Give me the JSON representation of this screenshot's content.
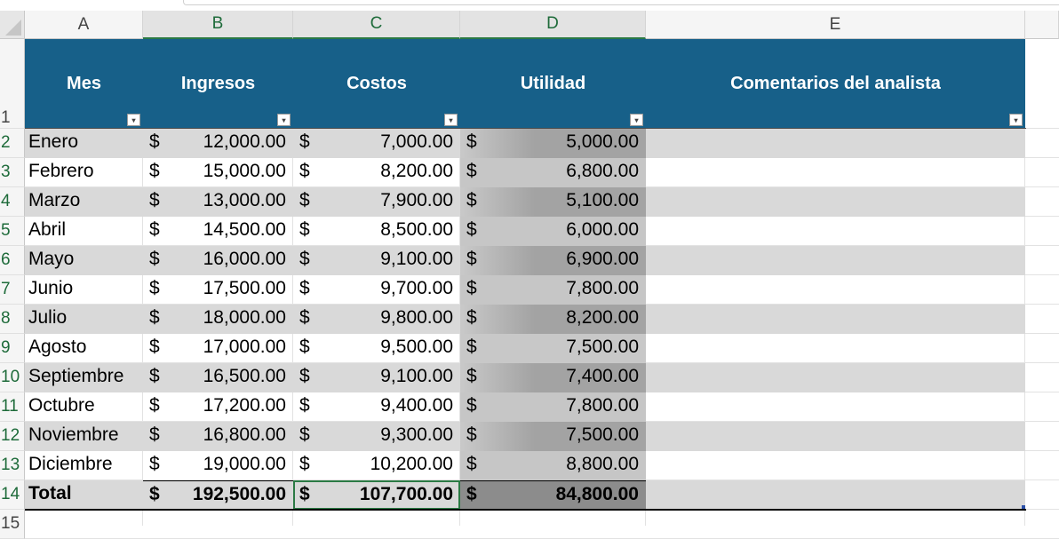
{
  "columns": [
    "A",
    "B",
    "C",
    "D",
    "E"
  ],
  "rows": [
    "1",
    "2",
    "3",
    "4",
    "5",
    "6",
    "7",
    "8",
    "9",
    "10",
    "11",
    "12",
    "13",
    "14",
    "15"
  ],
  "headers": [
    "Mes",
    "Ingresos",
    "Costos",
    "Utilidad",
    "Comentarios del analista"
  ],
  "currency": "$",
  "data": [
    {
      "mes": "Enero",
      "ingresos": "12,000.00",
      "costos": "7,000.00",
      "utilidad": "5,000.00"
    },
    {
      "mes": "Febrero",
      "ingresos": "15,000.00",
      "costos": "8,200.00",
      "utilidad": "6,800.00"
    },
    {
      "mes": "Marzo",
      "ingresos": "13,000.00",
      "costos": "7,900.00",
      "utilidad": "5,100.00"
    },
    {
      "mes": "Abril",
      "ingresos": "14,500.00",
      "costos": "8,500.00",
      "utilidad": "6,000.00"
    },
    {
      "mes": "Mayo",
      "ingresos": "16,000.00",
      "costos": "9,100.00",
      "utilidad": "6,900.00"
    },
    {
      "mes": "Junio",
      "ingresos": "17,500.00",
      "costos": "9,700.00",
      "utilidad": "7,800.00"
    },
    {
      "mes": "Julio",
      "ingresos": "18,000.00",
      "costos": "9,800.00",
      "utilidad": "8,200.00"
    },
    {
      "mes": "Agosto",
      "ingresos": "17,000.00",
      "costos": "9,500.00",
      "utilidad": "7,500.00"
    },
    {
      "mes": "Septiembre",
      "ingresos": "16,500.00",
      "costos": "9,100.00",
      "utilidad": "7,400.00"
    },
    {
      "mes": "Octubre",
      "ingresos": "17,200.00",
      "costos": "9,400.00",
      "utilidad": "7,800.00"
    },
    {
      "mes": "Noviembre",
      "ingresos": "16,800.00",
      "costos": "9,300.00",
      "utilidad": "7,500.00"
    },
    {
      "mes": "Diciembre",
      "ingresos": "19,000.00",
      "costos": "10,200.00",
      "utilidad": "8,800.00"
    }
  ],
  "total": {
    "mes": "Total",
    "ingresos": "192,500.00",
    "costos": "107,700.00",
    "utilidad": "84,800.00"
  },
  "colors": {
    "header_fill": "#176089",
    "band": "#d9d9d9",
    "utilidad_dark": "#a6a6a6",
    "utilidad_light": "#c6c6c6",
    "total_dark": "#8c8c8c",
    "selection": "#2b7a44"
  }
}
